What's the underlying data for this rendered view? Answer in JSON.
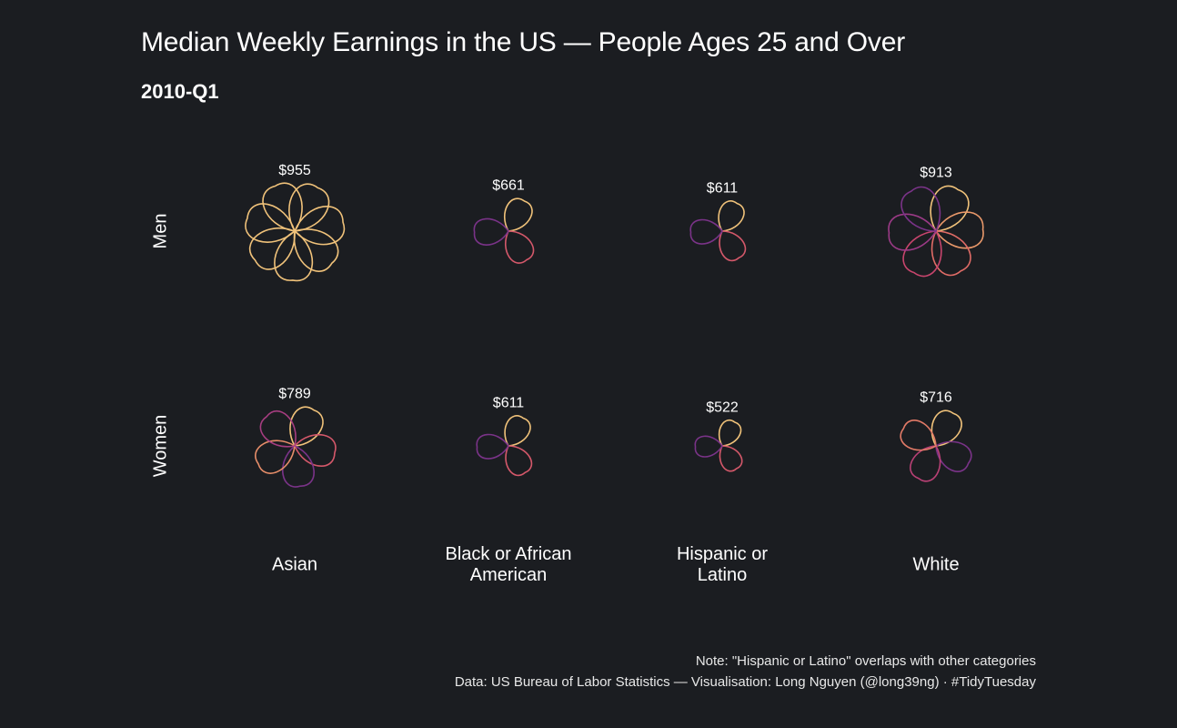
{
  "header": {
    "title": "Median Weekly Earnings in the US — People Ages 25 and Over",
    "period": "2010-Q1"
  },
  "rows": [
    {
      "label": "Men"
    },
    {
      "label": "Women"
    }
  ],
  "columns": [
    {
      "label": "Black or African American"
    },
    {
      "label": "Hispanic or Latino"
    },
    {
      "label": "White"
    },
    {
      "label": "Asian"
    }
  ],
  "footer": {
    "note": "Note: \"Hispanic or Latino\" overlaps with other categories",
    "credits": "Data: US Bureau of Labor Statistics — Visualisation: Long Nguyen (@long39ng) · #TidyTuesday"
  },
  "chart_data": {
    "type": "rose-glyph",
    "title": "Median Weekly Earnings in the US — People Ages 25 and Over",
    "subtitle": "2010-Q1",
    "unit": "USD per week",
    "row_dimension": "sex",
    "column_dimension": "race / ethnicity",
    "encoding": "flower size and number of petals scale with median weekly earnings",
    "cells": [
      {
        "sex": "Men",
        "group": "Asian",
        "value": 955,
        "label": "$955"
      },
      {
        "sex": "Men",
        "group": "Black or African American",
        "value": 661,
        "label": "$661"
      },
      {
        "sex": "Men",
        "group": "Hispanic or Latino",
        "value": 611,
        "label": "$611"
      },
      {
        "sex": "Men",
        "group": "White",
        "value": 913,
        "label": "$913"
      },
      {
        "sex": "Women",
        "group": "Asian",
        "value": 789,
        "label": "$789"
      },
      {
        "sex": "Women",
        "group": "Black or African American",
        "value": 611,
        "label": "$611"
      },
      {
        "sex": "Women",
        "group": "Hispanic or Latino",
        "value": 522,
        "label": "$522"
      },
      {
        "sex": "Women",
        "group": "White",
        "value": 716,
        "label": "$716"
      }
    ],
    "palette": [
      "#f0c27a",
      "#e8986a",
      "#df6b66",
      "#c8456d",
      "#9b3a86",
      "#7a3388"
    ]
  }
}
